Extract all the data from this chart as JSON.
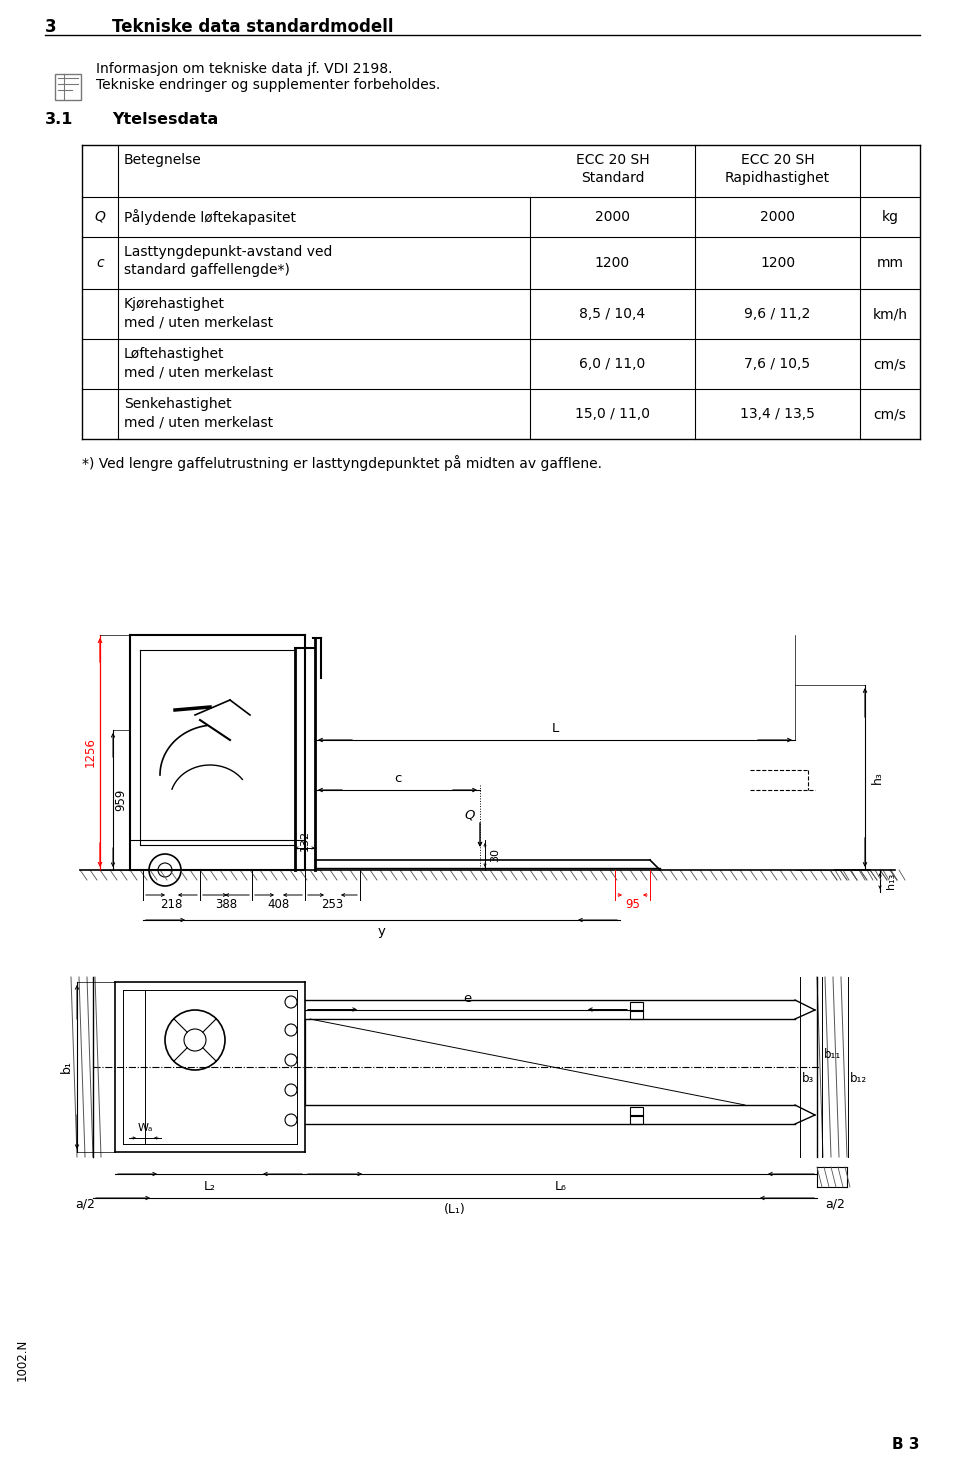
{
  "page_title_num": "3",
  "page_title_text": "Tekniske data standardmodell",
  "info_line1": "Informasjon om tekniske data jf. VDI 2198.",
  "info_line2": "Tekniske endringer og supplementer forbeholdes.",
  "section_num": "3.1",
  "section_title": "Ytelsesdata",
  "footnote": "*) Ved lengre gaffelutrustning er lasttyngdepunktet på midten av gafflene.",
  "page_label_bottom_left": "1002.N",
  "page_label_bottom_right": "B 3",
  "bg_color": "#ffffff",
  "text_color": "#000000",
  "red_color": "#cc0000",
  "line_color": "#000000",
  "rows": [
    {
      "sym": "Q",
      "desc1": "Pålydende løftekapasitet",
      "desc2": "",
      "v1": "2000",
      "v2": "2000",
      "unit": "kg"
    },
    {
      "sym": "c",
      "desc1": "Lasttyngdepunkt-avstand ved",
      "desc2": "standard gaffellengde*)",
      "v1": "1200",
      "v2": "1200",
      "unit": "mm"
    },
    {
      "sym": "",
      "desc1": "Kjørehastighet",
      "desc2": "med / uten merkelast",
      "v1": "8,5 / 10,4",
      "v2": "9,6 / 11,2",
      "unit": "km/h"
    },
    {
      "sym": "",
      "desc1": "Løftehastighet",
      "desc2": "med / uten merkelast",
      "v1": "6,0 / 11,0",
      "v2": "7,6 / 10,5",
      "unit": "cm/s"
    },
    {
      "sym": "",
      "desc1": "Senkehastighet",
      "desc2": "med / uten merkelast",
      "v1": "15,0 / 11,0",
      "v2": "13,4 / 13,5",
      "unit": "cm/s"
    }
  ]
}
